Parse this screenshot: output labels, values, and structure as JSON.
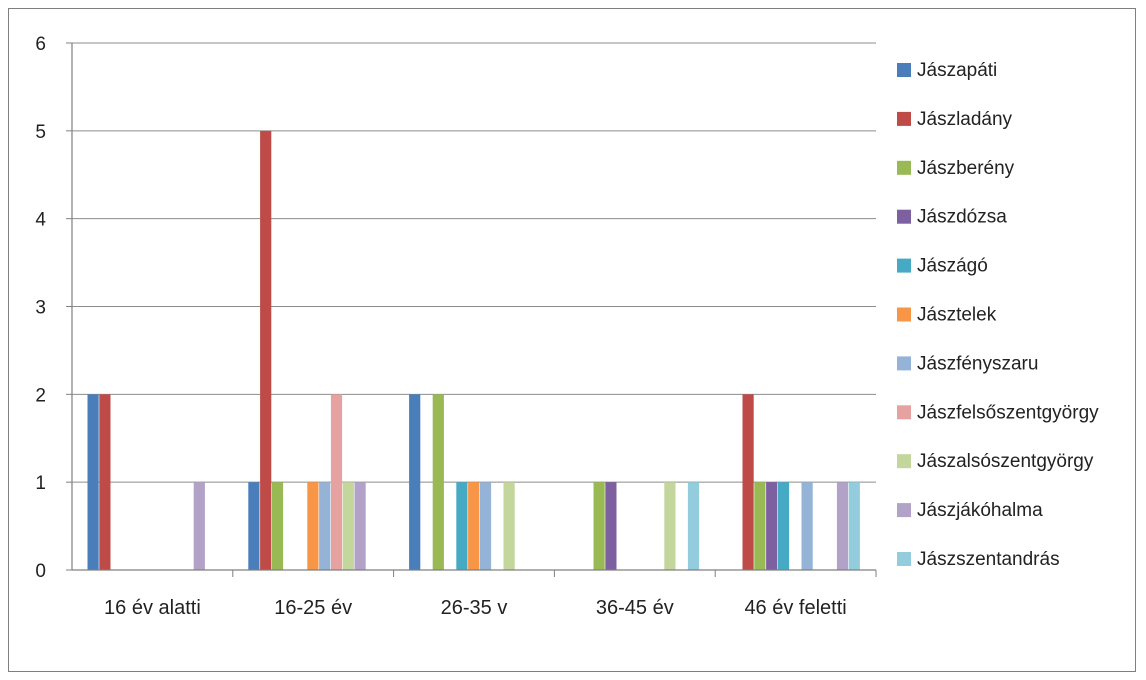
{
  "chart_data": {
    "type": "bar",
    "title": "",
    "xlabel": "",
    "ylabel": "",
    "ylim": [
      0,
      6
    ],
    "yticks": [
      0,
      1,
      2,
      3,
      4,
      5,
      6
    ],
    "grid": true,
    "legend_position": "right",
    "categories": [
      "16 év alatti",
      "16-25 év",
      "26-35 v",
      "36-45 év",
      "46 év feletti"
    ],
    "series": [
      {
        "name": "Jászapáti",
        "color": "#4a7ebb",
        "values": [
          2,
          1,
          2,
          0,
          0
        ]
      },
      {
        "name": "Jászladány",
        "color": "#be4b48",
        "values": [
          2,
          5,
          0,
          0,
          2
        ]
      },
      {
        "name": "Jászberény",
        "color": "#98b954",
        "values": [
          0,
          1,
          2,
          1,
          1
        ]
      },
      {
        "name": "Jászdózsa",
        "color": "#7d60a0",
        "values": [
          0,
          0,
          0,
          1,
          1
        ]
      },
      {
        "name": "Jászágó",
        "color": "#46aac5",
        "values": [
          0,
          0,
          1,
          0,
          1
        ]
      },
      {
        "name": "Jásztelek",
        "color": "#f79646",
        "values": [
          0,
          1,
          1,
          0,
          0
        ]
      },
      {
        "name": "Jászfényszaru",
        "color": "#95b3d7",
        "values": [
          0,
          1,
          1,
          0,
          1
        ]
      },
      {
        "name": "Jászfelsőszentgyörgy",
        "color": "#e6a2a0",
        "values": [
          0,
          2,
          0,
          0,
          0
        ]
      },
      {
        "name": "Jászalsószentgyörgy",
        "color": "#c3d69b",
        "values": [
          0,
          1,
          1,
          1,
          0
        ]
      },
      {
        "name": "Jászjákóhalma",
        "color": "#b3a2c7",
        "values": [
          1,
          1,
          0,
          0,
          1
        ]
      },
      {
        "name": "Jászszentandrás",
        "color": "#93cddd",
        "values": [
          0,
          0,
          0,
          1,
          1
        ]
      }
    ]
  }
}
